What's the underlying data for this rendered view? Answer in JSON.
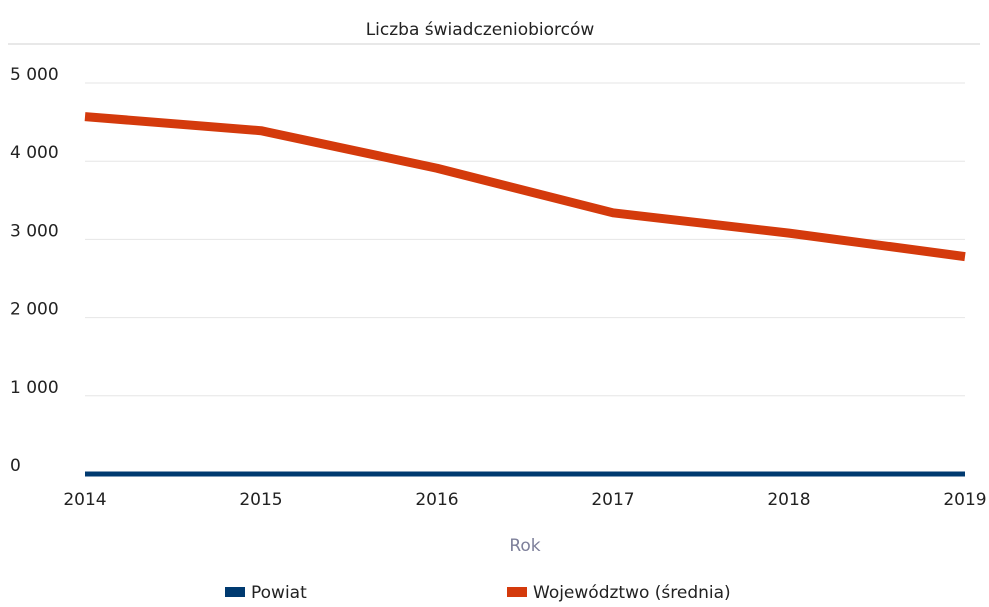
{
  "chart_data": {
    "type": "line",
    "title": "Liczba świadczeniobiorców",
    "x_label": "Rok",
    "x": [
      2014,
      2015,
      2016,
      2017,
      2018,
      2019
    ],
    "xlim": [
      2014,
      2019
    ],
    "xticks": [
      2014,
      2015,
      2016,
      2017,
      2018,
      2019
    ],
    "ylim": [
      0,
      5000
    ],
    "yticks": [
      0,
      {
        "value": 1000,
        "label": "1 000"
      },
      {
        "value": 2000,
        "label": "2 000"
      },
      {
        "value": 3000,
        "label": "3 000"
      },
      {
        "value": 4000,
        "label": "4 000"
      },
      {
        "value": 5000,
        "label": "5 000"
      }
    ],
    "grid": true,
    "series": [
      {
        "name": "Powiat",
        "color": "#003a70",
        "values": [
          0,
          0,
          0,
          0,
          0,
          0
        ]
      },
      {
        "name": "Województwo (średnia)",
        "color": "#d43a0c",
        "values": [
          4570,
          4390,
          3910,
          3340,
          3080,
          2780
        ]
      }
    ]
  }
}
